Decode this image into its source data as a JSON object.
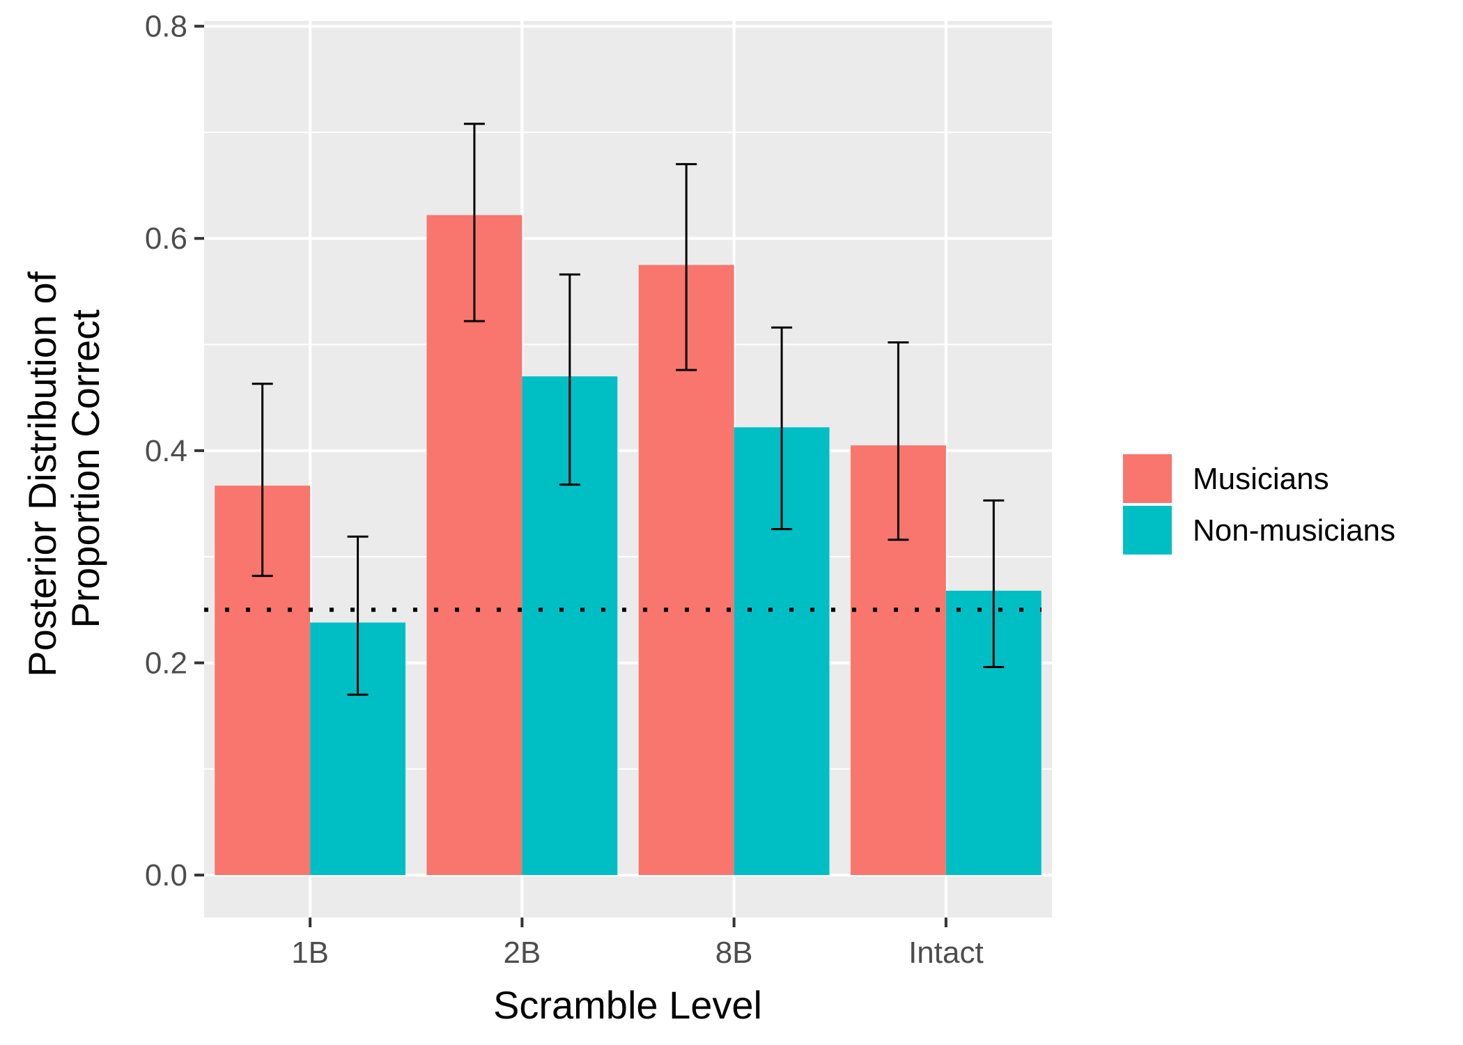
{
  "chart_data": {
    "type": "bar",
    "xlabel": "Scramble Level",
    "ylabel_lines": [
      "Posterior Distribution of",
      "Proportion Correct"
    ],
    "categories": [
      "1B",
      "2B",
      "8B",
      "Intact"
    ],
    "series": [
      {
        "name": "Musicians",
        "color": "#F8766D",
        "values": [
          0.367,
          0.622,
          0.575,
          0.405
        ],
        "error_low": [
          0.282,
          0.522,
          0.476,
          0.316
        ],
        "error_high": [
          0.463,
          0.708,
          0.67,
          0.502
        ]
      },
      {
        "name": "Non-musicians",
        "color": "#00BFC4",
        "values": [
          0.238,
          0.47,
          0.422,
          0.268
        ],
        "error_low": [
          0.17,
          0.368,
          0.326,
          0.196
        ],
        "error_high": [
          0.319,
          0.566,
          0.516,
          0.353
        ]
      }
    ],
    "ylim": [
      -0.04,
      0.805
    ],
    "yticks": [
      0.0,
      0.2,
      0.4,
      0.6,
      0.8
    ],
    "ytick_labels": [
      "0.0",
      "0.2",
      "0.4",
      "0.6",
      "0.8"
    ],
    "reference_line": {
      "y": 0.25,
      "style": "dotted"
    },
    "panel_background": "#EBEBEB",
    "grid": true,
    "legend_position": "right"
  }
}
